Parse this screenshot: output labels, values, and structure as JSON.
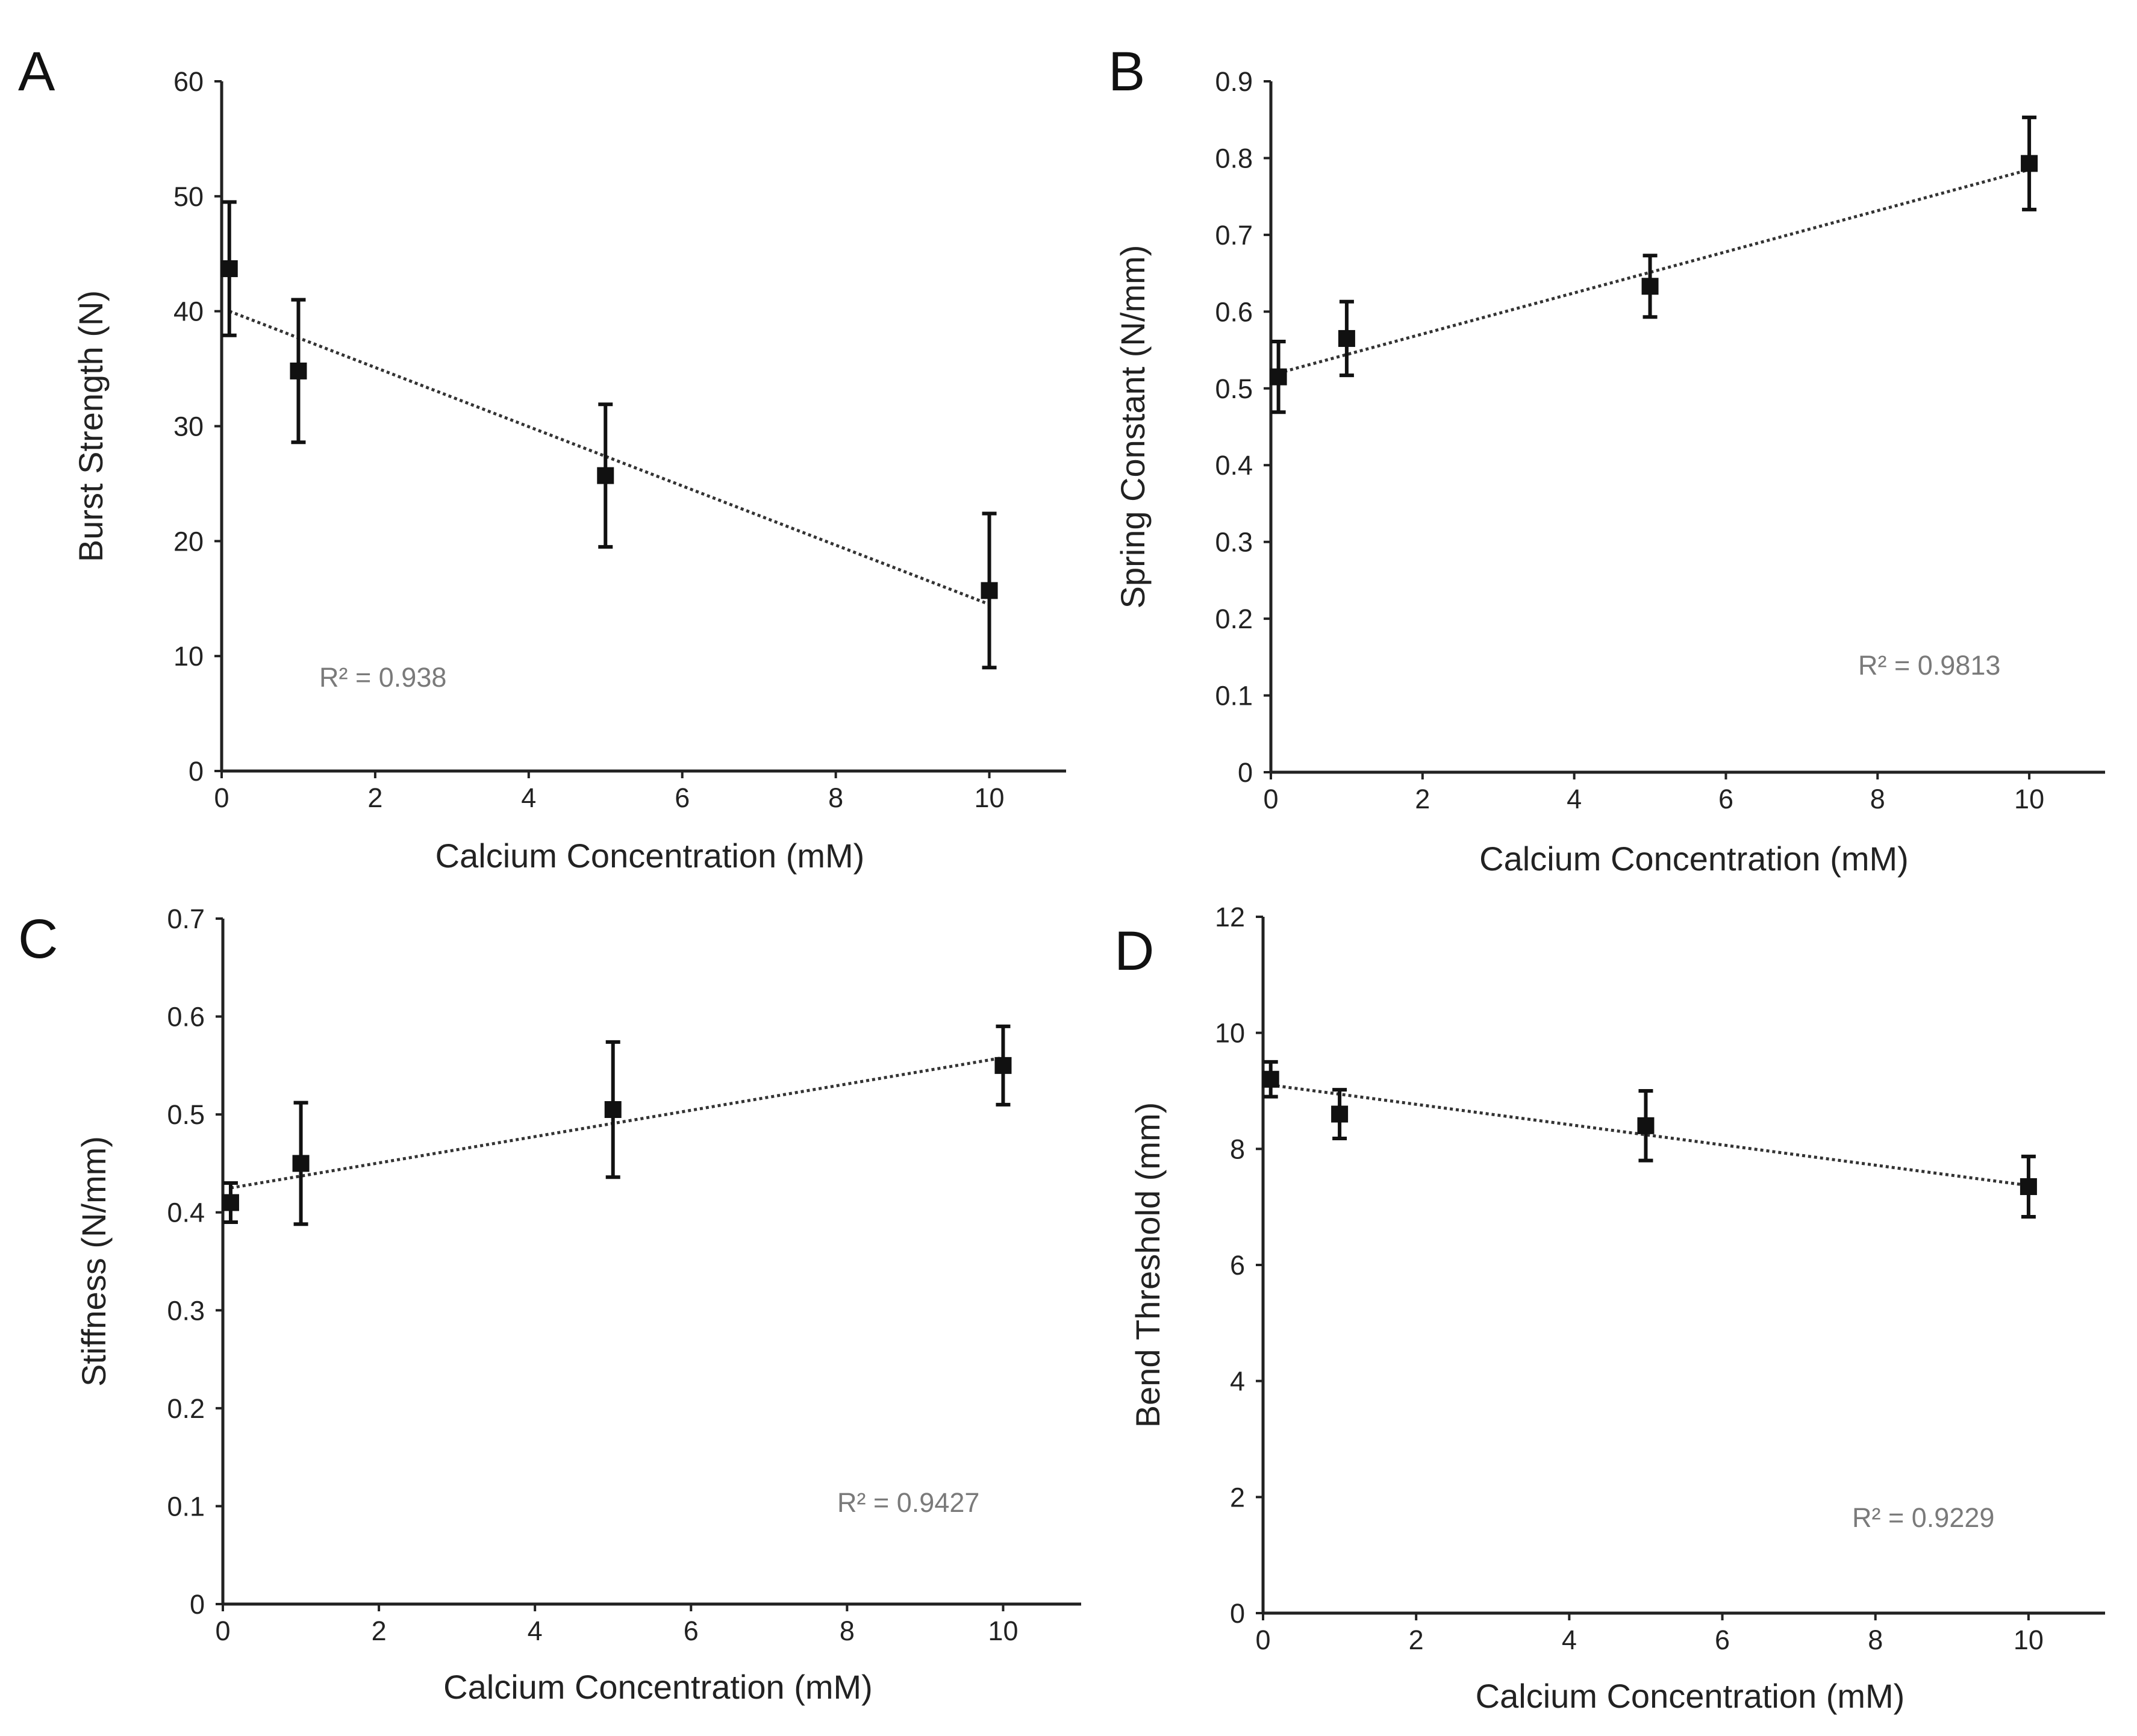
{
  "chart_data": [
    {
      "panel": "A",
      "type": "scatter",
      "xlabel": "Calcium Concentration (mM)",
      "ylabel": "Burst Strength (N)",
      "xlim": [
        0,
        11
      ],
      "ylim": [
        0,
        60
      ],
      "xticks": [
        0,
        2,
        4,
        6,
        8,
        10
      ],
      "yticks": [
        0,
        10,
        20,
        30,
        40,
        50,
        60
      ],
      "x": [
        0.1,
        1,
        5,
        10
      ],
      "y": [
        43.7,
        34.8,
        25.7,
        15.7
      ],
      "yerr": [
        5.8,
        6.2,
        6.2,
        6.7
      ],
      "trendline": {
        "x": [
          0.1,
          10
        ],
        "y": [
          40.0,
          14.5
        ]
      },
      "annotation": "R² = 0.938"
    },
    {
      "panel": "B",
      "type": "scatter",
      "xlabel": "Calcium Concentration (mM)",
      "ylabel": "Spring Constant (N/mm)",
      "xlim": [
        0,
        11
      ],
      "ylim": [
        0,
        0.9
      ],
      "xticks": [
        0,
        2,
        4,
        6,
        8,
        10
      ],
      "yticks": [
        0,
        0.1,
        0.2,
        0.3,
        0.4,
        0.5,
        0.6,
        0.7,
        0.8,
        0.9
      ],
      "x": [
        0.1,
        1,
        5,
        10
      ],
      "y": [
        0.515,
        0.565,
        0.633,
        0.793
      ],
      "yerr": [
        0.046,
        0.048,
        0.04,
        0.06
      ],
      "trendline": {
        "x": [
          0.1,
          10
        ],
        "y": [
          0.52,
          0.785
        ]
      },
      "annotation": "R² = 0.9813"
    },
    {
      "panel": "C",
      "type": "scatter",
      "xlabel": "Calcium Concentration (mM)",
      "ylabel": "Stiffness (N/mm)",
      "xlim": [
        0,
        11
      ],
      "ylim": [
        0,
        0.7
      ],
      "xticks": [
        0,
        2,
        4,
        6,
        8,
        10
      ],
      "yticks": [
        0,
        0.1,
        0.2,
        0.3,
        0.4,
        0.5,
        0.6,
        0.7
      ],
      "x": [
        0.1,
        1,
        5,
        10
      ],
      "y": [
        0.41,
        0.45,
        0.505,
        0.55
      ],
      "yerr": [
        0.02,
        0.062,
        0.069,
        0.04
      ],
      "trendline": {
        "x": [
          0.1,
          10
        ],
        "y": [
          0.425,
          0.558
        ]
      },
      "annotation": "R² = 0.9427"
    },
    {
      "panel": "D",
      "type": "scatter",
      "xlabel": "Calcium Concentration (mM)",
      "ylabel": "Bend Threshold (mm)",
      "xlim": [
        0,
        11
      ],
      "ylim": [
        0,
        12
      ],
      "xticks": [
        0,
        2,
        4,
        6,
        8,
        10
      ],
      "yticks": [
        0,
        2,
        4,
        6,
        8,
        10,
        12
      ],
      "x": [
        0.1,
        1,
        5,
        10
      ],
      "y": [
        9.2,
        8.6,
        8.4,
        7.35
      ],
      "yerr": [
        0.3,
        0.42,
        0.6,
        0.52
      ],
      "trendline": {
        "x": [
          0.1,
          10
        ],
        "y": [
          9.1,
          7.37
        ]
      },
      "annotation": "R² = 0.9229"
    }
  ]
}
